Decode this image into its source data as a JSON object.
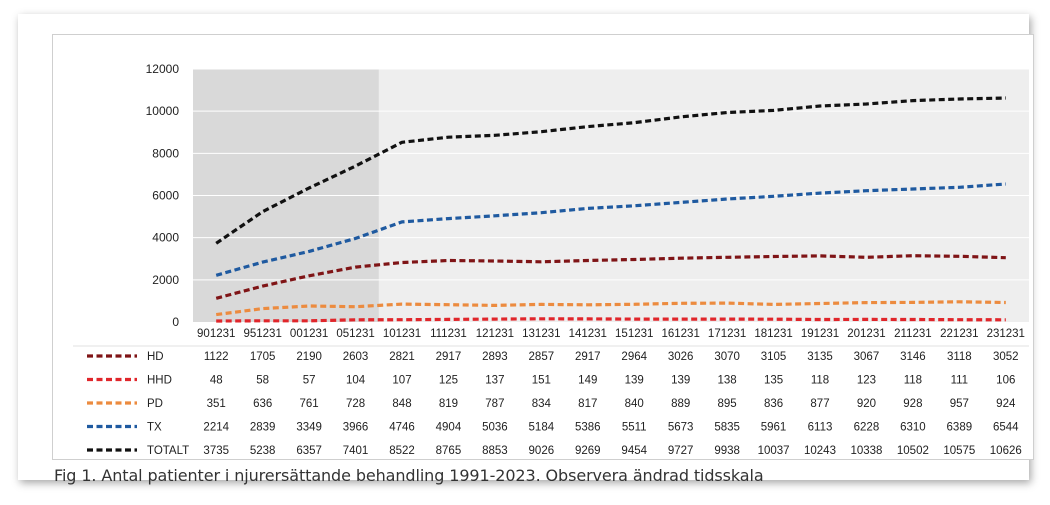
{
  "caption": "Fig 1. Antal patienter i njurersättande behandling 1991-2023. Observera ändrad tidsskala",
  "colors": {
    "plot_background": "#eeeeee",
    "shaded_region": "#d9d9d9",
    "gridline": "#ffffff"
  },
  "chart_data": {
    "type": "line",
    "title": "",
    "xlabel": "",
    "ylabel": "",
    "ylim": [
      0,
      12000
    ],
    "yticks": [
      0,
      2000,
      4000,
      6000,
      8000,
      10000,
      12000
    ],
    "grid": true,
    "legend": "left, in data table",
    "shaded_categories": [
      "901231",
      "951231",
      "001231",
      "051231"
    ],
    "categories": [
      "901231",
      "951231",
      "001231",
      "051231",
      "101231",
      "111231",
      "121231",
      "131231",
      "141231",
      "151231",
      "161231",
      "171231",
      "181231",
      "191231",
      "201231",
      "211231",
      "221231",
      "231231"
    ],
    "series": [
      {
        "name": "HD",
        "color": "#7f1416",
        "values": [
          1122,
          1705,
          2190,
          2603,
          2821,
          2917,
          2893,
          2857,
          2917,
          2964,
          3026,
          3070,
          3105,
          3135,
          3067,
          3146,
          3118,
          3052
        ]
      },
      {
        "name": "HHD",
        "color": "#e0262b",
        "values": [
          48,
          58,
          57,
          104,
          107,
          125,
          137,
          151,
          149,
          139,
          139,
          138,
          135,
          118,
          123,
          118,
          111,
          106
        ]
      },
      {
        "name": "PD",
        "color": "#ec8b3f",
        "values": [
          351,
          636,
          761,
          728,
          848,
          819,
          787,
          834,
          817,
          840,
          889,
          895,
          836,
          877,
          920,
          928,
          957,
          924
        ]
      },
      {
        "name": "TX",
        "color": "#1f5aa0",
        "values": [
          2214,
          2839,
          3349,
          3966,
          4746,
          4904,
          5036,
          5184,
          5386,
          5511,
          5673,
          5835,
          5961,
          6113,
          6228,
          6310,
          6389,
          6544
        ]
      },
      {
        "name": "TOTALT",
        "color": "#111111",
        "values": [
          3735,
          5238,
          6357,
          7401,
          8522,
          8765,
          8853,
          9026,
          9269,
          9454,
          9727,
          9938,
          10037,
          10243,
          10338,
          10502,
          10575,
          10626
        ]
      }
    ]
  }
}
